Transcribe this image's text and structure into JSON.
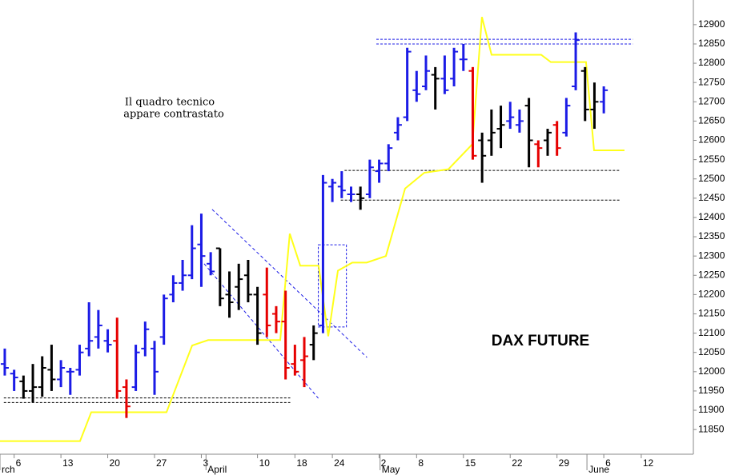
{
  "chart_data": {
    "type": "ohlc",
    "title": "DAX FUTURE",
    "annotations": [
      "Il quadro tecnico",
      "appare contrastato"
    ],
    "x": [
      0,
      1,
      2,
      3,
      4,
      5,
      6,
      7,
      8,
      9,
      10,
      11,
      12,
      13,
      14,
      15,
      16,
      17,
      18,
      19,
      20,
      21,
      22,
      23,
      24,
      25,
      26,
      27,
      28,
      29,
      30,
      31,
      32,
      33,
      34,
      35,
      36,
      37,
      38,
      39,
      40,
      41,
      42,
      43,
      44,
      45,
      46,
      47,
      48,
      49,
      50,
      51,
      52,
      53,
      54,
      55,
      56,
      57,
      58,
      59,
      60,
      61,
      62,
      63,
      64
    ],
    "open": [
      12020,
      11995,
      11975,
      11950,
      11960,
      12005,
      11980,
      12000,
      12005,
      12060,
      12090,
      12080,
      12080,
      11960,
      11960,
      12060,
      12060,
      12090,
      12200,
      12230,
      12250,
      12330,
      12280,
      12320,
      12200,
      12220,
      12250,
      12200,
      12200,
      12150,
      12130,
      12020,
      12030,
      12070,
      12120,
      12480,
      12480,
      12460,
      12460,
      12460,
      12520,
      12540,
      12620,
      12660,
      12730,
      12740,
      12770,
      12760,
      12760,
      12810,
      12780,
      12600,
      12600,
      12630,
      12650,
      12640,
      12690,
      12590,
      12600,
      12640,
      12620,
      12740,
      12780,
      12680,
      12700
    ],
    "high": [
      12060,
      12005,
      11990,
      12020,
      12040,
      12070,
      12030,
      12010,
      12070,
      12180,
      12160,
      12110,
      12140,
      11980,
      12070,
      12130,
      12080,
      12200,
      12250,
      12290,
      12380,
      12410,
      12310,
      12320,
      12260,
      12280,
      12290,
      12220,
      12270,
      12170,
      12210,
      12070,
      12090,
      12120,
      12510,
      12500,
      12520,
      12480,
      12480,
      12550,
      12550,
      12590,
      12660,
      12840,
      12780,
      12820,
      12790,
      12820,
      12840,
      12850,
      12790,
      12620,
      12680,
      12690,
      12700,
      12680,
      12710,
      12600,
      12630,
      12650,
      12710,
      12880,
      12790,
      12750,
      12740
    ],
    "low": [
      11990,
      11950,
      11930,
      11920,
      11935,
      11950,
      11960,
      11940,
      11990,
      12040,
      12060,
      12050,
      11930,
      11880,
      11950,
      12040,
      11940,
      12070,
      12180,
      12210,
      12240,
      12220,
      12250,
      12170,
      12140,
      12160,
      12180,
      12070,
      12090,
      12100,
      11980,
      11990,
      11960,
      12030,
      12100,
      12440,
      12450,
      12440,
      12420,
      12450,
      12490,
      12520,
      12600,
      12650,
      12700,
      12730,
      12680,
      12720,
      12740,
      12780,
      12550,
      12490,
      12560,
      12580,
      12630,
      12620,
      12530,
      12530,
      12560,
      12560,
      12610,
      12730,
      12650,
      12630,
      12670
    ],
    "close": [
      12010,
      11985,
      11950,
      11960,
      12010,
      11980,
      12010,
      12000,
      12050,
      12080,
      12120,
      12070,
      11950,
      11910,
      12050,
      12110,
      12000,
      12190,
      12230,
      12250,
      12320,
      12300,
      12260,
      12190,
      12180,
      12240,
      12200,
      12100,
      12120,
      12130,
      12010,
      12000,
      12040,
      12100,
      12490,
      12490,
      12470,
      12460,
      12450,
      12530,
      12540,
      12580,
      12640,
      12830,
      12720,
      12780,
      12760,
      12730,
      12830,
      12810,
      12560,
      12560,
      12620,
      12640,
      12660,
      12650,
      12600,
      12580,
      12620,
      12580,
      12690,
      12860,
      12680,
      12700,
      12730
    ],
    "bar_colors": [
      "#1b1be6",
      "#1b1be6",
      "#000000",
      "#000000",
      "#000000",
      "#000000",
      "#1b1be6",
      "#1b1be6",
      "#1b1be6",
      "#1b1be6",
      "#1b1be6",
      "#1b1be6",
      "#e60000",
      "#e60000",
      "#1b1be6",
      "#1b1be6",
      "#1b1be6",
      "#1b1be6",
      "#1b1be6",
      "#1b1be6",
      "#1b1be6",
      "#1b1be6",
      "#1b1be6",
      "#000000",
      "#000000",
      "#000000",
      "#000000",
      "#000000",
      "#e60000",
      "#e60000",
      "#e60000",
      "#e60000",
      "#e60000",
      "#000000",
      "#1b1be6",
      "#1b1be6",
      "#1b1be6",
      "#1b1be6",
      "#000000",
      "#1b1be6",
      "#1b1be6",
      "#1b1be6",
      "#1b1be6",
      "#1b1be6",
      "#1b1be6",
      "#1b1be6",
      "#000000",
      "#1b1be6",
      "#1b1be6",
      "#1b1be6",
      "#e60000",
      "#000000",
      "#000000",
      "#000000",
      "#1b1be6",
      "#1b1be6",
      "#000000",
      "#e60000",
      "#000000",
      "#e60000",
      "#1b1be6",
      "#1b1be6",
      "#000000",
      "#000000",
      "#1b1be6"
    ],
    "line": {
      "color": "#ffff1a",
      "x": [
        -0.51,
        8.04,
        9.24,
        17.28,
        20.02,
        21.73,
        29.43,
        30.45,
        31.57,
        33.53,
        34.56,
        35.59,
        37.13,
        38.67,
        40.72,
        42.77,
        44.82,
        47.39,
        49.96,
        50.98,
        52.01,
        57.31,
        58.34,
        62.1,
        62.96,
        66.21
      ],
      "values": [
        11820,
        11820,
        11895,
        11895,
        12068,
        12082,
        12082,
        12358,
        12275,
        12275,
        12092,
        12262,
        12283,
        12283,
        12300,
        12475,
        12516,
        12525,
        12590,
        12920,
        12822,
        12822,
        12803,
        12803,
        12574,
        12574
      ]
    },
    "levels": [
      {
        "x": [
          -0.1,
          30.5
        ],
        "value": 11920,
        "color": "#000000"
      },
      {
        "x": [
          -0.1,
          30.5
        ],
        "value": 11932,
        "color": "#000000"
      },
      {
        "x": [
          39.7,
          67.1
        ],
        "value": 12850,
        "color": "#1b1be6"
      },
      {
        "x": [
          39.7,
          67.1
        ],
        "value": 12862,
        "color": "#1b1be6"
      },
      {
        "x": [
          36.3,
          65.8
        ],
        "value": 12522,
        "color": "#000000"
      },
      {
        "x": [
          35.9,
          65.8
        ],
        "value": 12445,
        "color": "#000000"
      }
    ],
    "trend_lines": [
      {
        "x": [
          22.15,
          38.7
        ],
        "values": [
          12421,
          12037
        ],
        "color": "#1b1be6"
      },
      {
        "x": [
          21.3,
          33.5
        ],
        "values": [
          12280,
          11931
        ],
        "color": "#1b1be6"
      }
    ],
    "box": {
      "x": [
        33.5,
        36.5
      ],
      "values": [
        12116,
        12329
      ],
      "color": "#1b1be6"
    },
    "xlim": [
      -0.51,
      73.57
    ],
    "ylim": [
      11786,
      12964
    ],
    "yticks": [
      11850,
      11900,
      11950,
      12000,
      12050,
      12100,
      12150,
      12200,
      12250,
      12300,
      12350,
      12400,
      12450,
      12500,
      12550,
      12600,
      12650,
      12700,
      12750,
      12800,
      12850,
      12900
    ],
    "xticks": [
      {
        "value": 1,
        "label": "6"
      },
      {
        "value": 6,
        "label": "13"
      },
      {
        "value": 11,
        "label": "20"
      },
      {
        "value": 16,
        "label": "27"
      },
      {
        "value": 21,
        "label": "3"
      },
      {
        "value": 27,
        "label": "10"
      },
      {
        "value": 31,
        "label": "18"
      },
      {
        "value": 35,
        "label": "24"
      },
      {
        "value": 40,
        "label": "2"
      },
      {
        "value": 44,
        "label": "8"
      },
      {
        "value": 49,
        "label": "15"
      },
      {
        "value": 54,
        "label": "22"
      },
      {
        "value": 59,
        "label": "29"
      },
      {
        "value": 64,
        "label": "6"
      },
      {
        "value": 68,
        "label": "12"
      }
    ],
    "month_labels": [
      {
        "value": -0.51,
        "label": "rch"
      },
      {
        "value": 21.5,
        "label": "April"
      },
      {
        "value": 40.1,
        "label": "May"
      },
      {
        "value": 62.2,
        "label": "June"
      }
    ]
  }
}
